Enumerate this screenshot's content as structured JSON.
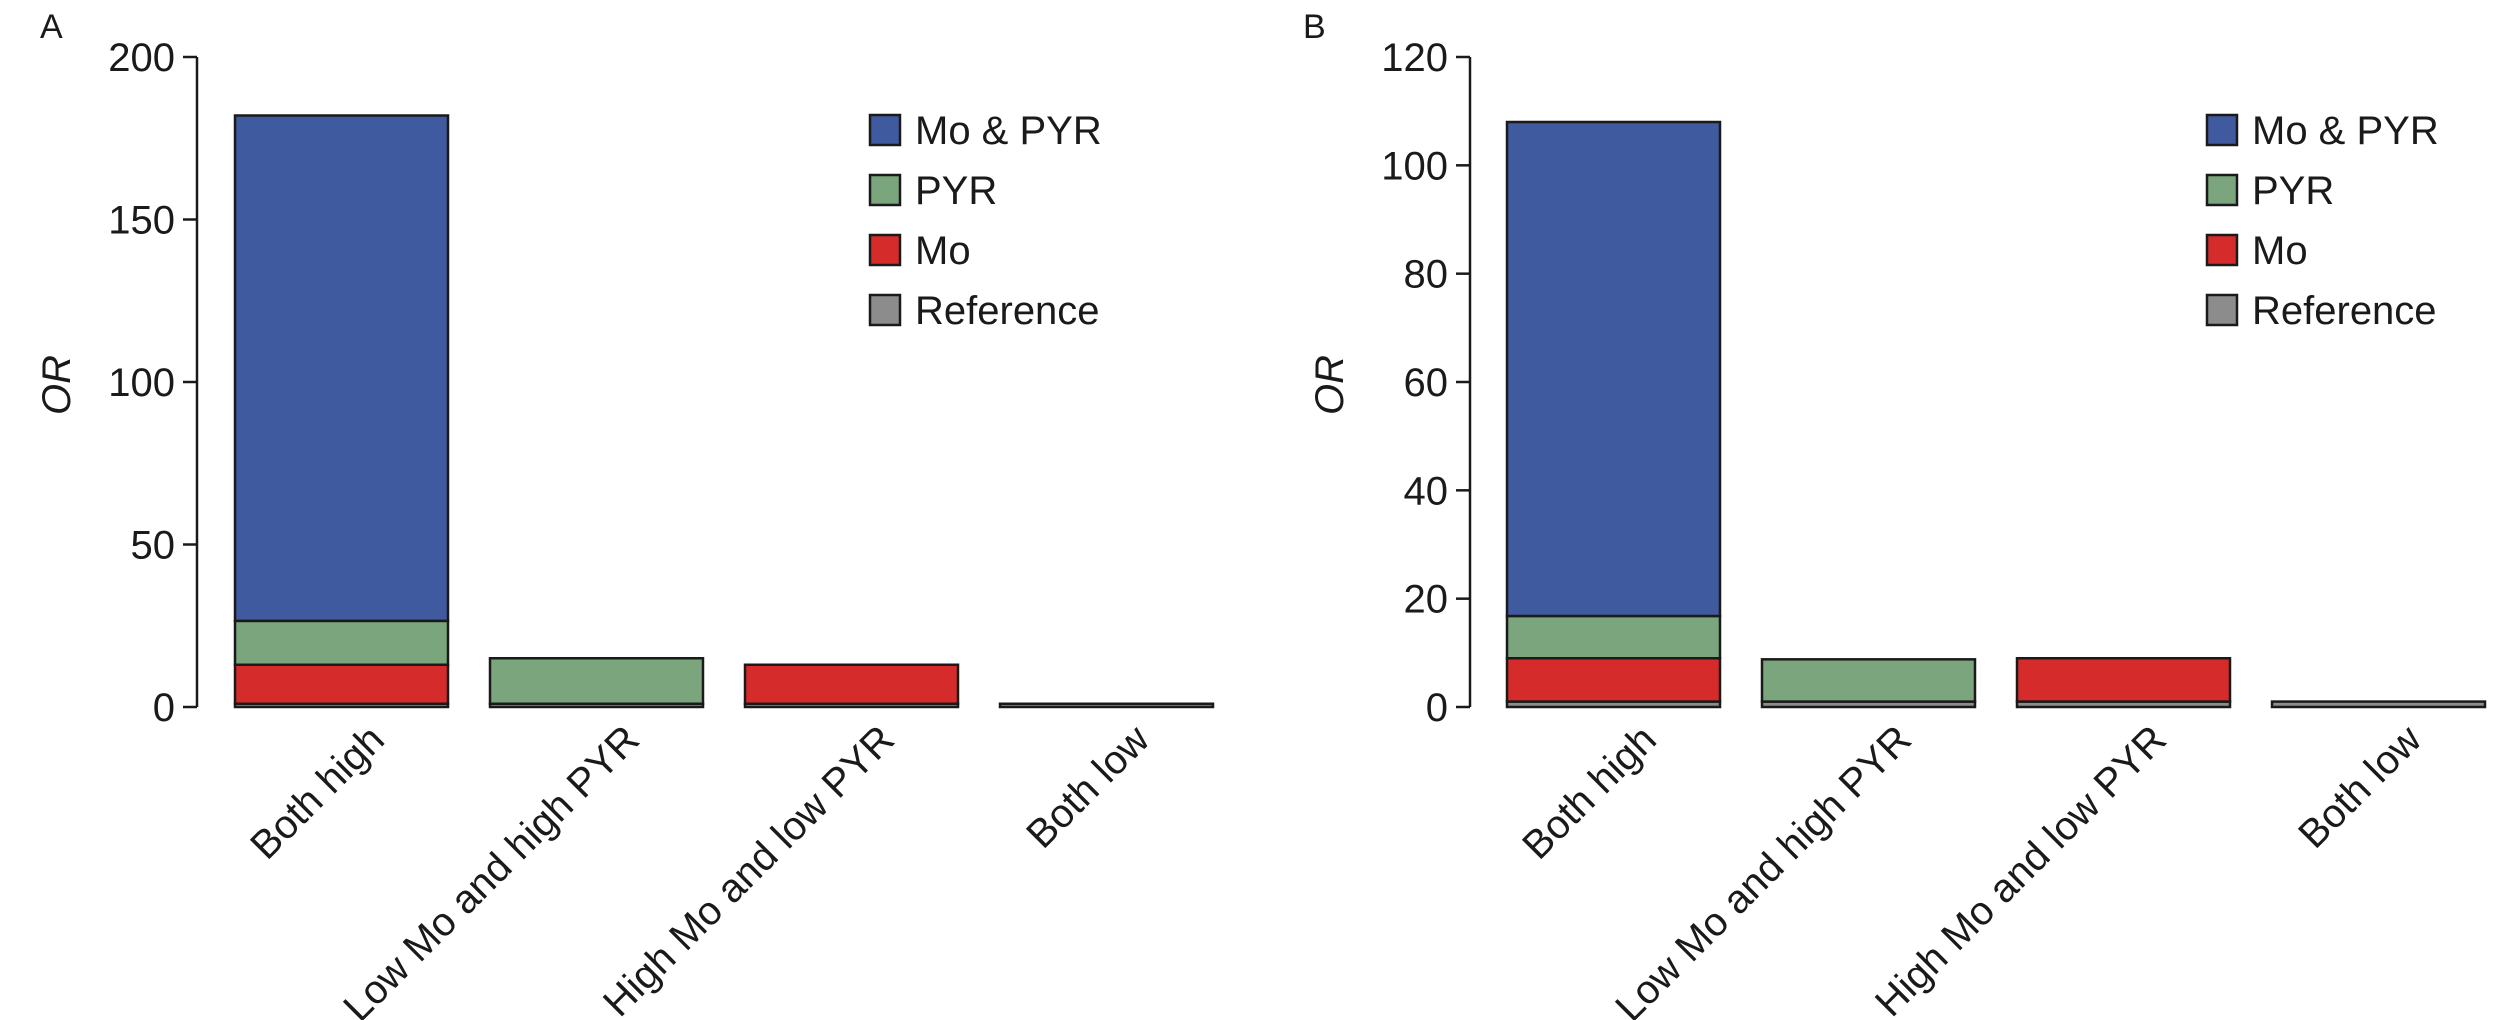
{
  "chart_data": [
    {
      "panel": "A",
      "type": "bar",
      "stacked": true,
      "ylabel": "OR",
      "ylim": [
        0,
        200
      ],
      "yticks": [
        "0",
        "50",
        "100",
        "150",
        "200"
      ],
      "categories": [
        "Both high",
        "Low Mo and high PYR",
        "High Mo and low PYR",
        "Both low"
      ],
      "series": [
        {
          "name": "Reference",
          "color": "#8c8c8c",
          "values": [
            1,
            1,
            1,
            1
          ]
        },
        {
          "name": "Mo",
          "color": "#d62b2b",
          "values": [
            12,
            0,
            12,
            0
          ]
        },
        {
          "name": "PYR",
          "color": "#7aa57d",
          "values": [
            13.5,
            14,
            0,
            0
          ]
        },
        {
          "name": "Mo & PYR",
          "color": "#3f5a9e",
          "values": [
            155.5,
            0,
            0,
            0
          ]
        }
      ],
      "legend": [
        "Mo & PYR",
        "PYR",
        "Mo",
        "Reference"
      ],
      "legend_position": "top-right",
      "grid": false
    },
    {
      "panel": "B",
      "type": "bar",
      "stacked": true,
      "ylabel": "OR",
      "ylim": [
        0,
        120
      ],
      "yticks": [
        "0",
        "20",
        "40",
        "60",
        "80",
        "100",
        "120"
      ],
      "categories": [
        "Both high",
        "Low Mo and high PYR",
        "High Mo and low PYR",
        "Both low"
      ],
      "series": [
        {
          "name": "Reference",
          "color": "#8c8c8c",
          "values": [
            1,
            1,
            1,
            1
          ]
        },
        {
          "name": "Mo",
          "color": "#d62b2b",
          "values": [
            8,
            0,
            8,
            0
          ]
        },
        {
          "name": "PYR",
          "color": "#7aa57d",
          "values": [
            7.8,
            7.8,
            0,
            0
          ]
        },
        {
          "name": "Mo & PYR",
          "color": "#3f5a9e",
          "values": [
            91.2,
            0,
            0,
            0
          ]
        }
      ],
      "legend": [
        "Mo & PYR",
        "PYR",
        "Mo",
        "Reference"
      ],
      "legend_position": "top-right",
      "grid": false
    }
  ]
}
